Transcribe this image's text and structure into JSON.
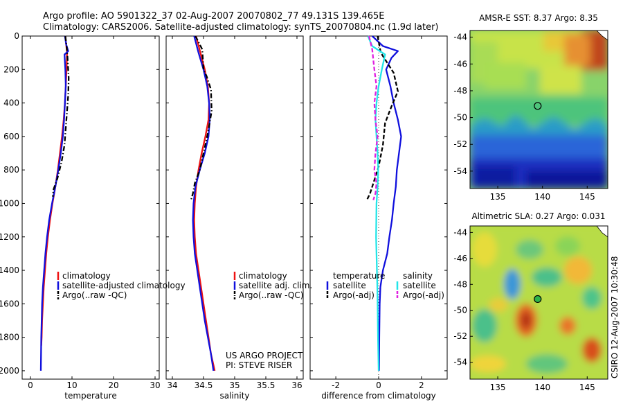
{
  "header": {
    "line1": "Argo profile: AO 5901322_37 02-Aug-2007 20070802_77 49.131S 139.465E",
    "line2": "Climatology: CARS2006. Satellite-adjusted climatology: synTS_20070804.nc (1.9d later)"
  },
  "project": {
    "line1": "US ARGO PROJECT",
    "line2": "PI: STEVE RISER"
  },
  "side_label": "CSIRO 12-Aug-2007 10:30:48",
  "colors": {
    "climatology": "#ee1111",
    "satellite": "#1010dd",
    "argo": "#000000",
    "cyan": "#22e5e8",
    "magenta": "#e020e0"
  },
  "chart_data": [
    {
      "type": "line",
      "xlabel": "temperature",
      "ylim": [
        2050,
        0
      ],
      "xlim": [
        -2,
        31
      ],
      "xticks": [
        "0",
        "10",
        "20",
        "30"
      ],
      "yticks": [
        "0",
        "200",
        "400",
        "600",
        "800",
        "1000",
        "1200",
        "1400",
        "1600",
        "1800",
        "2000"
      ],
      "legend": [
        "climatology",
        "satellite-adjusted climatology",
        "Argo(..raw -QC)"
      ],
      "series": [
        {
          "name": "climatology",
          "color": "red",
          "x": [
            8.4,
            8.8,
            8.7,
            8.5,
            8.3,
            8.0,
            7.6,
            7.1,
            6.6,
            6.0,
            5.3,
            4.7,
            4.2,
            3.8,
            3.5,
            3.2,
            3.0,
            2.8,
            2.7,
            2.6
          ],
          "y": [
            0,
            100,
            200,
            300,
            400,
            500,
            600,
            700,
            800,
            900,
            1000,
            1100,
            1200,
            1300,
            1400,
            1500,
            1600,
            1700,
            1800,
            1850
          ]
        },
        {
          "name": "satellite-adjusted climatology",
          "color": "blue",
          "x": [
            8.3,
            8.6,
            9.1,
            8.2,
            8.4,
            8.5,
            8.3,
            8.1,
            7.8,
            7.3,
            6.7,
            6.0,
            5.2,
            4.5,
            4.0,
            3.6,
            3.3,
            3.0,
            2.8,
            2.6,
            2.5
          ],
          "y": [
            0,
            50,
            90,
            110,
            200,
            300,
            400,
            500,
            600,
            700,
            800,
            900,
            1000,
            1100,
            1200,
            1300,
            1400,
            1500,
            1600,
            1800,
            2000
          ]
        },
        {
          "name": "Argo(..raw -QC)",
          "color": "black",
          "dash": "dashdot",
          "x": [
            8.4,
            8.7,
            8.9,
            9.2,
            9.1,
            8.8,
            8.5,
            8.2,
            7.5,
            6.5,
            5.5,
            5.4
          ],
          "y": [
            0,
            60,
            120,
            250,
            350,
            450,
            550,
            650,
            750,
            850,
            920,
            960
          ]
        }
      ]
    },
    {
      "type": "line",
      "xlabel": "salinity",
      "ylim": [
        2050,
        0
      ],
      "xlim": [
        33.9,
        36.1
      ],
      "xticks": [
        "34",
        "34.5",
        "35",
        "35.5",
        "36"
      ],
      "legend": [
        "climatology",
        "satellite adj. clim.",
        "Argo(..raw -QC)"
      ],
      "series": [
        {
          "name": "climatology",
          "color": "red",
          "x": [
            34.38,
            34.45,
            34.52,
            34.57,
            34.59,
            34.58,
            34.53,
            34.47,
            34.42,
            34.38,
            34.36,
            34.35,
            34.36,
            34.38,
            34.42,
            34.46,
            34.5,
            34.54,
            34.58,
            34.62,
            34.68
          ],
          "y": [
            0,
            100,
            200,
            300,
            400,
            500,
            600,
            700,
            800,
            900,
            1000,
            1100,
            1200,
            1300,
            1400,
            1500,
            1600,
            1700,
            1800,
            1900,
            2000
          ]
        },
        {
          "name": "satellite adj. clim.",
          "color": "blue",
          "x": [
            34.35,
            34.42,
            34.5,
            34.56,
            34.59,
            34.6,
            34.58,
            34.52,
            34.44,
            34.37,
            34.34,
            34.33,
            34.34,
            34.36,
            34.4,
            34.44,
            34.48,
            34.52,
            34.57,
            34.62,
            34.66
          ],
          "y": [
            0,
            100,
            200,
            300,
            400,
            500,
            600,
            700,
            800,
            900,
            1000,
            1100,
            1200,
            1300,
            1400,
            1500,
            1600,
            1700,
            1800,
            1900,
            2000
          ]
        },
        {
          "name": "Argo(..raw -QC)",
          "color": "black",
          "dash": "dashdot",
          "x": [
            34.37,
            34.48,
            34.5,
            34.55,
            34.62,
            34.63,
            34.57,
            34.5,
            34.44,
            34.36,
            34.33,
            34.3
          ],
          "y": [
            0,
            80,
            200,
            240,
            320,
            450,
            580,
            700,
            800,
            880,
            940,
            980
          ]
        }
      ]
    },
    {
      "type": "line",
      "xlabel": "difference from climatology",
      "ylim": [
        2050,
        0
      ],
      "xlim": [
        -3.2,
        3.2
      ],
      "xticks": [
        "-2",
        "0",
        "2"
      ],
      "legend_titles": [
        "temperature",
        "salinity"
      ],
      "legend": [
        "satellite",
        "Argo(-adj)",
        "satellite",
        "Argo(-adj)"
      ],
      "series": [
        {
          "name": "satellite",
          "group": "temperature",
          "color": "blue",
          "x": [
            -0.3,
            0.2,
            0.9,
            0.6,
            0.35,
            0.55,
            0.7,
            0.9,
            1.05,
            0.95,
            0.85,
            0.8,
            0.7,
            0.62,
            0.5,
            0.4,
            0.2,
            0.08,
            0.05,
            0.03,
            0.02
          ],
          "y": [
            0,
            60,
            90,
            130,
            200,
            300,
            400,
            500,
            600,
            700,
            800,
            900,
            1000,
            1100,
            1200,
            1300,
            1400,
            1500,
            1600,
            1800,
            2000
          ]
        },
        {
          "name": "Argo(-adj)",
          "group": "temperature",
          "color": "black",
          "dash": "dash",
          "x": [
            -0.05,
            0.1,
            0.7,
            0.9,
            0.6,
            0.3,
            0.2,
            0.0,
            -0.25,
            -0.4,
            -0.55
          ],
          "y": [
            0,
            100,
            220,
            330,
            420,
            520,
            650,
            780,
            880,
            940,
            980
          ]
        },
        {
          "name": "satellite",
          "group": "salinity",
          "color": "cyan",
          "x": [
            -0.5,
            -0.3,
            0.3,
            0.15,
            0.0,
            -0.1,
            -0.15,
            -0.1,
            -0.05,
            -0.02,
            -0.05,
            -0.1,
            -0.12,
            -0.1,
            -0.08,
            -0.06,
            -0.05,
            -0.04,
            -0.03,
            0.0
          ],
          "y": [
            0,
            60,
            110,
            200,
            300,
            400,
            500,
            600,
            700,
            800,
            900,
            1000,
            1200,
            1300,
            1400,
            1500,
            1600,
            1700,
            1800,
            2000
          ]
        },
        {
          "name": "Argo(-adj)",
          "group": "salinity",
          "color": "magenta",
          "dash": "dash",
          "x": [
            -0.45,
            -0.3,
            -0.2,
            -0.1,
            -0.2,
            -0.15,
            -0.05,
            -0.15,
            -0.2,
            -0.1,
            -0.15,
            -0.25
          ],
          "y": [
            0,
            80,
            200,
            300,
            400,
            500,
            600,
            700,
            800,
            880,
            940,
            980
          ]
        }
      ]
    },
    {
      "type": "heatmap",
      "title": "AMSR-E SST: 8.37 Argo: 8.35",
      "xticks": [
        "135",
        "140",
        "145"
      ],
      "yticks": [
        "-44",
        "-46",
        "-48",
        "-50",
        "-52",
        "-54"
      ],
      "marker": {
        "lon": 139.465,
        "lat": -49.131
      }
    },
    {
      "type": "heatmap",
      "title": "Altimetric SLA: 0.27 Argo: 0.031",
      "xticks": [
        "135",
        "140",
        "145"
      ],
      "yticks": [
        "-44",
        "-46",
        "-48",
        "-50",
        "-52",
        "-54"
      ],
      "marker": {
        "lon": 139.465,
        "lat": -49.131
      }
    }
  ]
}
